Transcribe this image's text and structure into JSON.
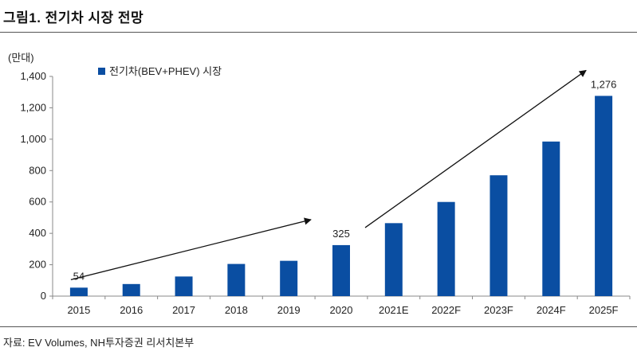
{
  "header": {
    "title": "그림1. 전기차 시장 전망"
  },
  "unit": "(만대)",
  "source": "자료: EV Volumes, NH투자증권 리서치본부",
  "colors": {
    "bar": "#0a4ea2",
    "arrow": "#111111",
    "axis": "#888888"
  },
  "chart_data": {
    "type": "bar",
    "title": "",
    "xlabel": "",
    "ylabel": "",
    "ylim": [
      0,
      1400
    ],
    "yticks": [
      0,
      200,
      400,
      600,
      800,
      1000,
      1200,
      1400
    ],
    "ytick_labels": [
      "0",
      "200",
      "400",
      "600",
      "800",
      "1,000",
      "1,200",
      "1,400"
    ],
    "categories": [
      "2015",
      "2016",
      "2017",
      "2018",
      "2019",
      "2020",
      "2021E",
      "2022F",
      "2023F",
      "2024F",
      "2025F"
    ],
    "series": [
      {
        "name": "전기차(BEV+PHEV) 시장",
        "values": [
          54,
          77,
          125,
          205,
          225,
          325,
          465,
          600,
          770,
          985,
          1276
        ]
      }
    ],
    "data_labels": [
      {
        "category": "2015",
        "text": "54"
      },
      {
        "category": "2020",
        "text": "325"
      },
      {
        "category": "2025F",
        "text": "1,276"
      }
    ],
    "legend_position": "top-left",
    "grid": false,
    "annotations": [
      {
        "type": "arrow",
        "from": [
          "2015",
          54
        ],
        "to": [
          "2020",
          325
        ]
      },
      {
        "type": "arrow",
        "from": [
          "2020",
          325
        ],
        "to": [
          "2025F",
          1276
        ]
      }
    ]
  }
}
